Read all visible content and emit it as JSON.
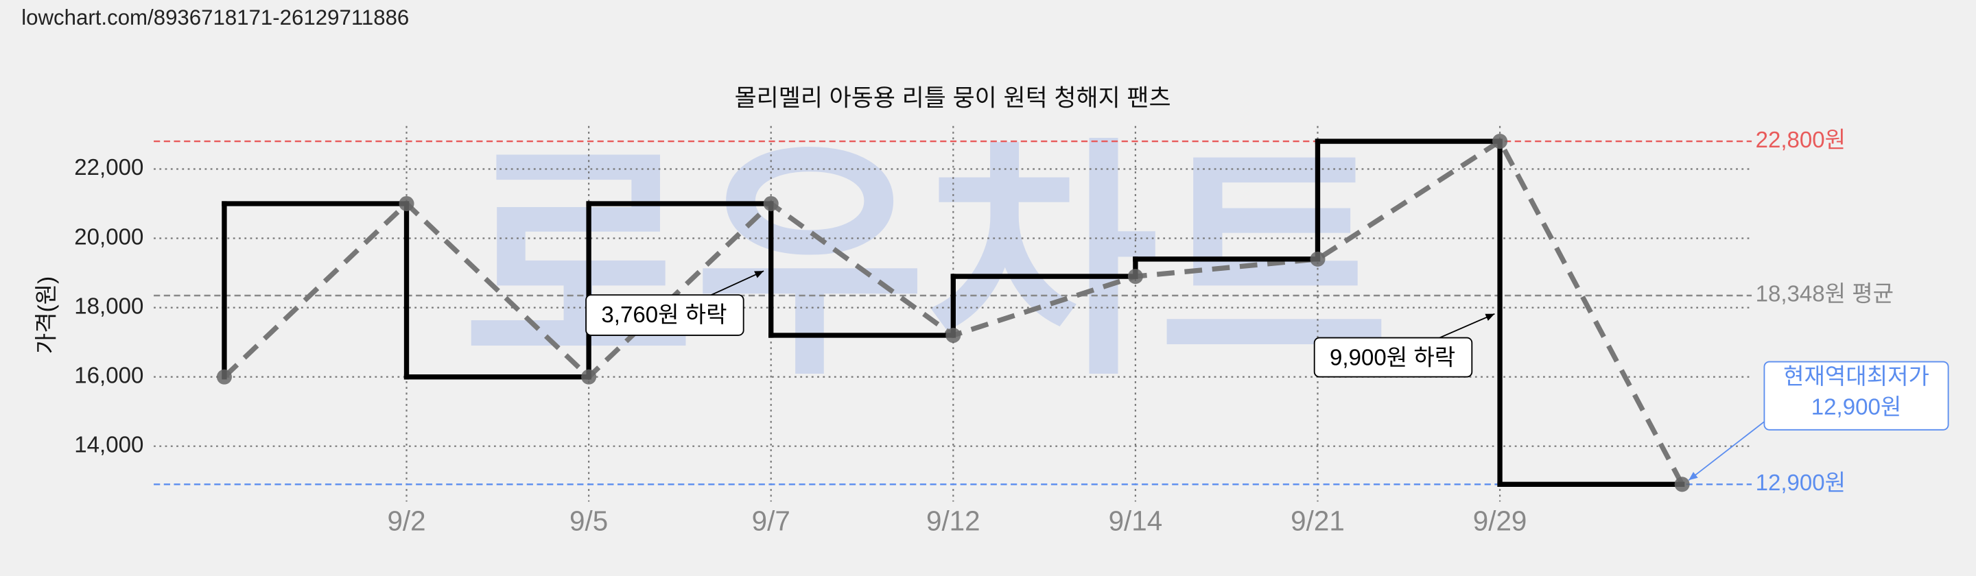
{
  "header": {
    "url": "lowchart.com/8936718171-26129711886"
  },
  "chart_data": {
    "type": "line",
    "title": "몰리멜리 아동용 리틀 뭉이 원턱 청해지 팬츠",
    "watermark": "로우차트",
    "y_label": "가격(원)",
    "categories": [
      null,
      "9/2",
      "9/5",
      "9/7",
      "9/12",
      "9/14",
      "9/21",
      "9/29",
      null
    ],
    "series": [
      {
        "color": "#000000",
        "values": [
          16000,
          21000,
          16000,
          21000,
          17200,
          18900,
          19400,
          22800,
          12900
        ]
      }
    ],
    "trend_color": "#777777",
    "ylim": [
      12400,
      23240
    ],
    "yticks": [
      {
        "value": 14000,
        "label": "14,000"
      },
      {
        "value": 16000,
        "label": "16,000"
      },
      {
        "value": 18000,
        "label": "18,000"
      },
      {
        "value": 20000,
        "label": "20,000"
      },
      {
        "value": 22000,
        "label": "22,000"
      }
    ],
    "grid": true,
    "reference_lines": [
      {
        "value": 22800,
        "label": "22,800원",
        "color": "#e85a5a"
      },
      {
        "value": 18348,
        "label": "18,348원 평균",
        "color": "#888888"
      },
      {
        "value": 12900,
        "label": "12,900원",
        "color": "#5b8def"
      }
    ],
    "annotations": [
      "3,760원 하락",
      "9,900원 하락",
      "현재역대최저가",
      "12,900원"
    ]
  }
}
